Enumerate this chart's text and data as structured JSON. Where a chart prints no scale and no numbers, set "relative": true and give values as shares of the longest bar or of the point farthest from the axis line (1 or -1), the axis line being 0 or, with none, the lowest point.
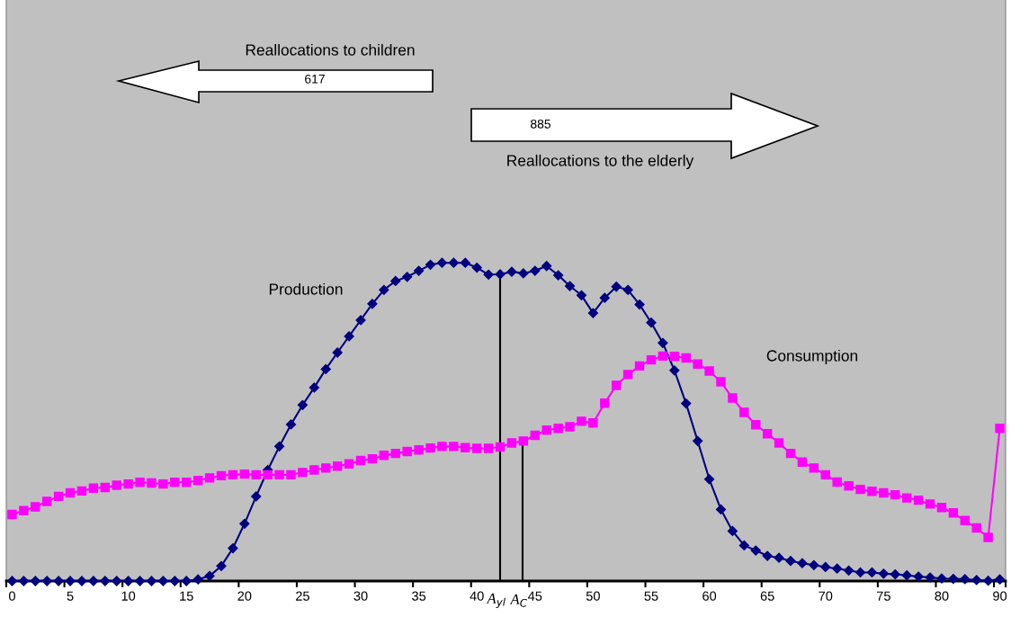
{
  "chart_data": {
    "type": "line",
    "relative": true,
    "categories": [
      "0",
      null,
      null,
      null,
      null,
      "5",
      null,
      null,
      null,
      null,
      "10",
      null,
      null,
      null,
      null,
      "15",
      null,
      null,
      null,
      null,
      "20",
      null,
      null,
      null,
      null,
      "25",
      null,
      null,
      null,
      null,
      "30",
      null,
      null,
      null,
      null,
      "35",
      null,
      null,
      null,
      null,
      "40",
      null,
      null,
      null,
      null,
      "45",
      null,
      null,
      null,
      null,
      "50",
      null,
      null,
      null,
      null,
      "55",
      null,
      null,
      null,
      null,
      "60",
      null,
      null,
      null,
      null,
      "65",
      null,
      null,
      null,
      null,
      "70",
      null,
      null,
      null,
      null,
      "75",
      null,
      null,
      null,
      null,
      "80",
      null,
      null,
      null,
      null,
      "90"
    ],
    "series": [
      {
        "name": "Production",
        "color": "#000080",
        "marker": "diamond",
        "values": [
          0,
          0,
          0,
          0,
          0,
          0,
          0,
          0,
          0,
          0,
          0,
          0,
          0,
          0,
          0,
          0,
          0.005,
          0.016,
          0.047,
          0.103,
          0.18,
          0.266,
          0.349,
          0.423,
          0.492,
          0.553,
          0.608,
          0.666,
          0.718,
          0.769,
          0.82,
          0.871,
          0.915,
          0.943,
          0.956,
          0.975,
          0.994,
          1.0,
          1.0,
          1.0,
          0.985,
          0.963,
          0.964,
          0.972,
          0.967,
          0.975,
          0.99,
          0.961,
          0.927,
          0.898,
          0.842,
          0.89,
          0.925,
          0.915,
          0.869,
          0.812,
          0.748,
          0.662,
          0.558,
          0.44,
          0.32,
          0.225,
          0.157,
          0.112,
          0.096,
          0.079,
          0.073,
          0.063,
          0.056,
          0.05,
          0.044,
          0.039,
          0.033,
          0.027,
          0.027,
          0.023,
          0.021,
          0.018,
          0.014,
          0.011,
          0.008,
          0.007,
          0.006,
          0.003,
          0.001,
          0.005
        ]
      },
      {
        "name": "Consumption",
        "color": "#ff00ff",
        "marker": "square",
        "values": [
          0.209,
          0.221,
          0.233,
          0.25,
          0.266,
          0.277,
          0.283,
          0.292,
          0.294,
          0.301,
          0.305,
          0.31,
          0.308,
          0.305,
          0.31,
          0.31,
          0.316,
          0.324,
          0.331,
          0.334,
          0.336,
          0.334,
          0.334,
          0.334,
          0.334,
          0.341,
          0.349,
          0.355,
          0.361,
          0.368,
          0.379,
          0.384,
          0.395,
          0.401,
          0.407,
          0.412,
          0.418,
          0.423,
          0.423,
          0.419,
          0.417,
          0.417,
          0.421,
          0.434,
          0.44,
          0.458,
          0.474,
          0.48,
          0.485,
          0.502,
          0.497,
          0.559,
          0.615,
          0.649,
          0.676,
          0.695,
          0.707,
          0.706,
          0.701,
          0.682,
          0.66,
          0.626,
          0.575,
          0.53,
          0.491,
          0.463,
          0.434,
          0.401,
          0.374,
          0.355,
          0.334,
          0.311,
          0.299,
          0.288,
          0.282,
          0.277,
          0.271,
          0.261,
          0.254,
          0.242,
          0.231,
          0.214,
          0.19,
          0.167,
          0.137,
          0.48
        ]
      }
    ],
    "annotations": [
      "Reallocations to children",
      "617",
      "885",
      "Reallocations to the elderly",
      "A$_{yl}$",
      "A$_{C}$"
    ]
  }
}
